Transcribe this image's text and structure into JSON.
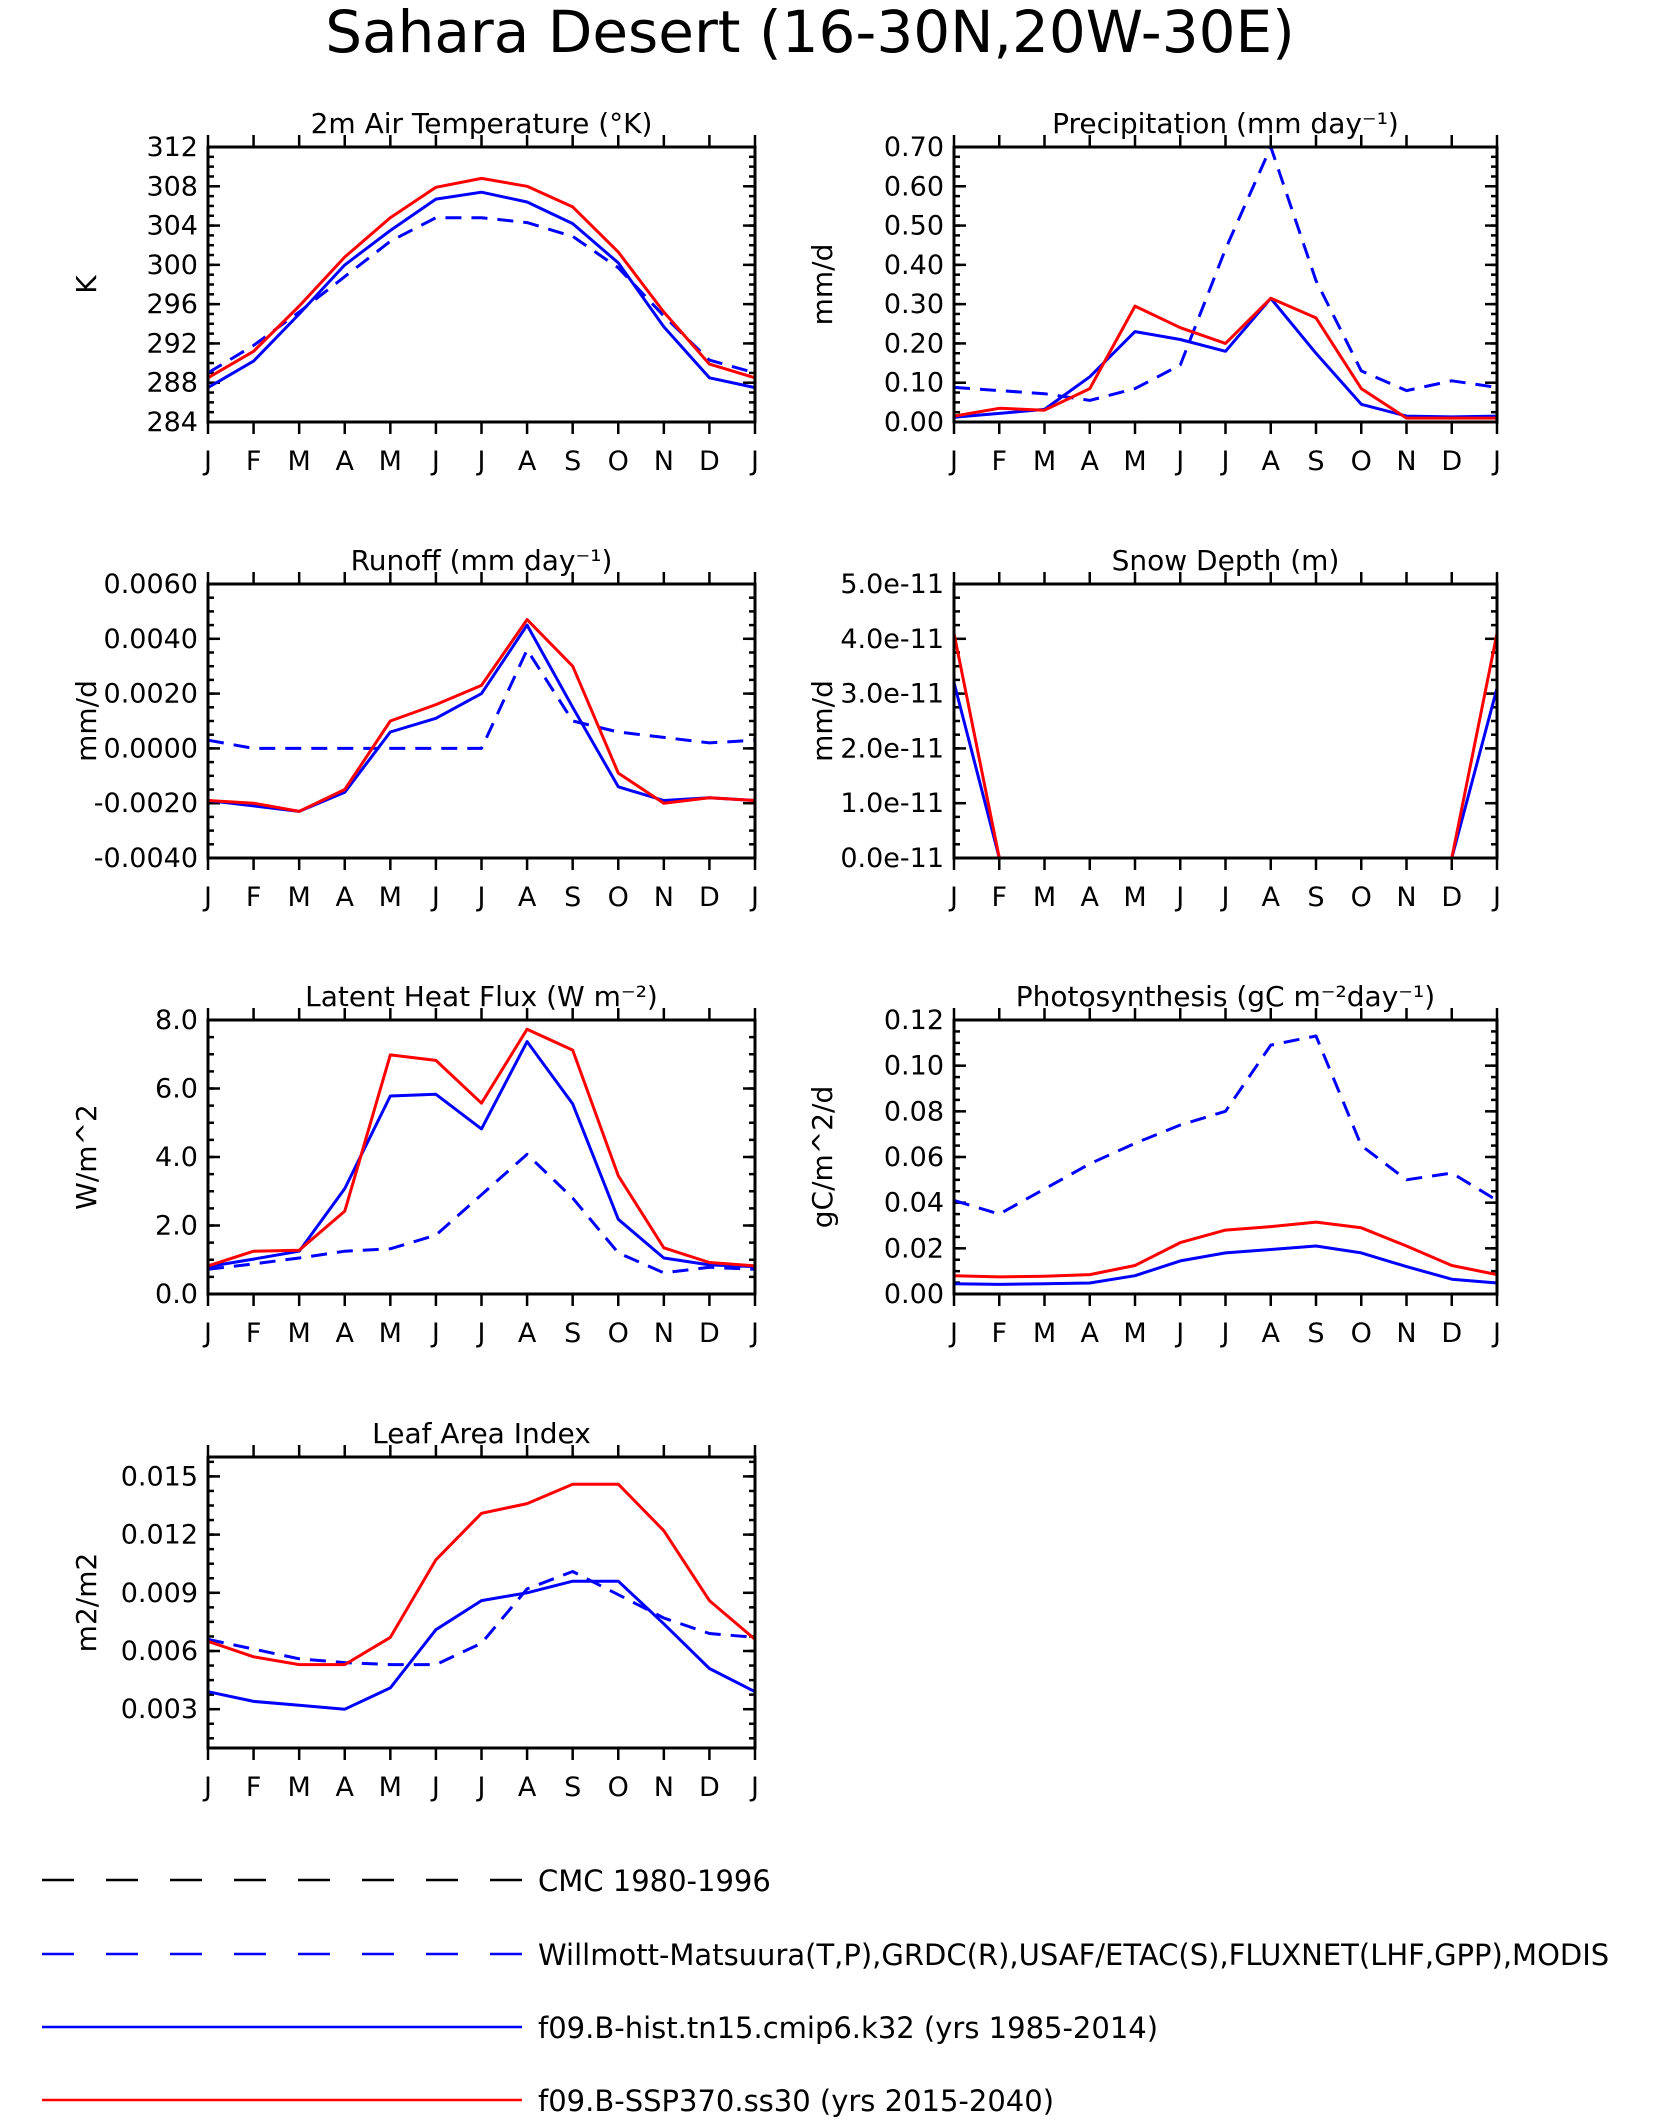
{
  "main_title": "Sahara Desert (16-30N,20W-30E)",
  "months": [
    "J",
    "F",
    "M",
    "A",
    "M",
    "J",
    "J",
    "A",
    "S",
    "O",
    "N",
    "D",
    "J"
  ],
  "colors": {
    "obs": "#0000ff",
    "hist": "#0000ff",
    "ssp": "#ff0000",
    "cmc": "#000000"
  },
  "chart_data": [
    {
      "type": "line",
      "title": "2m Air Temperature (°K)",
      "ylabel": "K",
      "ylim": [
        284,
        312
      ],
      "yticks": [
        "284",
        "288",
        "292",
        "296",
        "300",
        "304",
        "308",
        "312"
      ],
      "categories": [
        "J",
        "F",
        "M",
        "A",
        "M",
        "J",
        "J",
        "A",
        "S",
        "O",
        "N",
        "D",
        "J"
      ],
      "series": [
        {
          "name": "Willmott-Matsuura(T,P),GRDC(R),USAF/ETAC(S),FLUXNET(LHF,GPP),MODIS",
          "values": [
            289.0,
            291.8,
            295.2,
            298.8,
            302.4,
            304.8,
            304.8,
            304.3,
            302.9,
            299.7,
            294.8,
            290.3,
            289.0
          ]
        },
        {
          "name": "f09.B-hist.tn15.cmip6.k32 (yrs 1985-2014)",
          "values": [
            287.5,
            290.2,
            295.0,
            300.0,
            303.5,
            306.7,
            307.4,
            306.4,
            304.2,
            300.2,
            293.7,
            288.5,
            287.5
          ]
        },
        {
          "name": "f09.B-SSP370.ss30 (yrs 2015-2040)",
          "values": [
            288.5,
            291.2,
            295.8,
            300.8,
            304.8,
            307.9,
            308.8,
            308.0,
            305.9,
            301.3,
            295.2,
            289.9,
            288.5
          ]
        }
      ]
    },
    {
      "type": "line",
      "title": "Precipitation (mm day⁻¹)",
      "ylabel": "mm/d",
      "ylim": [
        0,
        0.7
      ],
      "yticks": [
        "0.00",
        "0.10",
        "0.20",
        "0.30",
        "0.40",
        "0.50",
        "0.60",
        "0.70"
      ],
      "categories": [
        "J",
        "F",
        "M",
        "A",
        "M",
        "J",
        "J",
        "A",
        "S",
        "O",
        "N",
        "D",
        "J"
      ],
      "series": [
        {
          "name": "Willmott-Matsuura(T,P),GRDC(R),USAF/ETAC(S),FLUXNET(LHF,GPP),MODIS",
          "values": [
            0.088,
            0.08,
            0.072,
            0.055,
            0.085,
            0.145,
            0.44,
            0.7,
            0.36,
            0.13,
            0.08,
            0.105,
            0.088
          ]
        },
        {
          "name": "f09.B-hist.tn15.cmip6.k32 (yrs 1985-2014)",
          "values": [
            0.012,
            0.022,
            0.032,
            0.115,
            0.23,
            0.21,
            0.18,
            0.315,
            0.175,
            0.045,
            0.015,
            0.013,
            0.015
          ]
        },
        {
          "name": "f09.B-SSP370.ss30 (yrs 2015-2040)",
          "values": [
            0.015,
            0.035,
            0.03,
            0.085,
            0.295,
            0.24,
            0.2,
            0.315,
            0.265,
            0.085,
            0.01,
            0.01,
            0.01
          ]
        }
      ]
    },
    {
      "type": "line",
      "title": "Runoff (mm day⁻¹)",
      "ylabel": "mm/d",
      "ylim": [
        -0.004,
        0.006
      ],
      "yticks": [
        "-0.0040",
        "-0.0020",
        "0.0000",
        "0.0020",
        "0.0040",
        "0.0060"
      ],
      "categories": [
        "J",
        "F",
        "M",
        "A",
        "M",
        "J",
        "J",
        "A",
        "S",
        "O",
        "N",
        "D",
        "J"
      ],
      "series": [
        {
          "name": "Willmott-Matsuura(T,P),GRDC(R),USAF/ETAC(S),FLUXNET(LHF,GPP),MODIS",
          "values": [
            0.0003,
            0.0,
            0.0,
            0.0,
            0.0,
            0.0,
            0.0,
            0.0036,
            0.001,
            0.0006,
            0.0004,
            0.0002,
            0.0003
          ]
        },
        {
          "name": "f09.B-hist.tn15.cmip6.k32 (yrs 1985-2014)",
          "values": [
            -0.0019,
            -0.0021,
            -0.0023,
            -0.0016,
            0.0006,
            0.0011,
            0.002,
            0.0045,
            0.0015,
            -0.0014,
            -0.0019,
            -0.0018,
            -0.0019
          ]
        },
        {
          "name": "f09.B-SSP370.ss30 (yrs 2015-2040)",
          "values": [
            -0.0019,
            -0.002,
            -0.0023,
            -0.0015,
            0.001,
            0.0016,
            0.0023,
            0.0047,
            0.003,
            -0.0009,
            -0.002,
            -0.0018,
            -0.0019
          ]
        }
      ]
    },
    {
      "type": "line",
      "title": "Snow Depth (m)",
      "ylabel": "mm/d",
      "ylim": [
        0,
        5e-11
      ],
      "yticks": [
        "0.0e-11",
        "1.0e-11",
        "2.0e-11",
        "3.0e-11",
        "4.0e-11",
        "5.0e-11"
      ],
      "categories": [
        "J",
        "F",
        "M",
        "A",
        "M",
        "J",
        "J",
        "A",
        "S",
        "O",
        "N",
        "D",
        "J"
      ],
      "series": [
        {
          "name": "Willmott-Matsuura(T,P),GRDC(R),USAF/ETAC(S),FLUXNET(LHF,GPP),MODIS",
          "values": [
            0,
            0,
            0,
            0,
            0,
            0,
            0,
            0,
            0,
            0,
            0,
            0,
            0
          ]
        },
        {
          "name": "f09.B-hist.tn15.cmip6.k32 (yrs 1985-2014)",
          "values": [
            3.2e-11,
            0,
            0,
            0,
            0,
            0,
            0,
            0,
            0,
            0,
            0,
            0,
            3.1e-11
          ]
        },
        {
          "name": "f09.B-SSP370.ss30 (yrs 2015-2040)",
          "values": [
            4.1e-11,
            0,
            0,
            0,
            0,
            0,
            0,
            0,
            0,
            0,
            0,
            0,
            4.1e-11
          ]
        }
      ]
    },
    {
      "type": "line",
      "title": "Latent Heat Flux (W m⁻²)",
      "ylabel": "W/m^2",
      "ylim": [
        0,
        8
      ],
      "yticks": [
        "0.0",
        "2.0",
        "4.0",
        "6.0",
        "8.0"
      ],
      "categories": [
        "J",
        "F",
        "M",
        "A",
        "M",
        "J",
        "J",
        "A",
        "S",
        "O",
        "N",
        "D",
        "J"
      ],
      "series": [
        {
          "name": "Willmott-Matsuura(T,P),GRDC(R),USAF/ETAC(S),FLUXNET(LHF,GPP),MODIS",
          "values": [
            0.72,
            0.88,
            1.05,
            1.25,
            1.32,
            1.72,
            2.9,
            4.08,
            2.8,
            1.2,
            0.62,
            0.78,
            0.72
          ]
        },
        {
          "name": "f09.B-hist.tn15.cmip6.k32 (yrs 1985-2014)",
          "values": [
            0.8,
            1.02,
            1.25,
            3.08,
            5.78,
            5.83,
            4.82,
            7.37,
            5.55,
            2.18,
            1.05,
            0.85,
            0.8
          ]
        },
        {
          "name": "f09.B-SSP370.ss30 (yrs 2015-2040)",
          "values": [
            0.82,
            1.25,
            1.28,
            2.42,
            6.98,
            6.82,
            5.57,
            7.73,
            7.12,
            3.45,
            1.35,
            0.92,
            0.82
          ]
        }
      ]
    },
    {
      "type": "line",
      "title": "Photosynthesis (gC m⁻²day⁻¹)",
      "ylabel": "gC/m^2/d",
      "ylim": [
        0,
        0.12
      ],
      "yticks": [
        "0.00",
        "0.02",
        "0.04",
        "0.06",
        "0.08",
        "0.10",
        "0.12"
      ],
      "categories": [
        "J",
        "F",
        "M",
        "A",
        "M",
        "J",
        "J",
        "A",
        "S",
        "O",
        "N",
        "D",
        "J"
      ],
      "series": [
        {
          "name": "Willmott-Matsuura(T,P),GRDC(R),USAF/ETAC(S),FLUXNET(LHF,GPP),MODIS",
          "values": [
            0.041,
            0.035,
            0.046,
            0.057,
            0.066,
            0.074,
            0.08,
            0.109,
            0.113,
            0.065,
            0.05,
            0.053,
            0.041
          ]
        },
        {
          "name": "f09.B-hist.tn15.cmip6.k32 (yrs 1985-2014)",
          "values": [
            0.0045,
            0.0042,
            0.0045,
            0.0048,
            0.008,
            0.0145,
            0.018,
            0.0195,
            0.021,
            0.018,
            0.012,
            0.0065,
            0.0048
          ]
        },
        {
          "name": "f09.B-SSP370.ss30 (yrs 2015-2040)",
          "values": [
            0.008,
            0.0075,
            0.0078,
            0.0085,
            0.0125,
            0.0225,
            0.028,
            0.0295,
            0.0315,
            0.029,
            0.021,
            0.0125,
            0.0085
          ]
        }
      ]
    },
    {
      "type": "line",
      "title": "Leaf Area Index",
      "ylabel": "m2/m2",
      "ylim": [
        0.001,
        0.016
      ],
      "yticks": [
        "0.003",
        "0.006",
        "0.009",
        "0.012",
        "0.015"
      ],
      "ytick_values": [
        0.003,
        0.006,
        0.009,
        0.012,
        0.015
      ],
      "categories": [
        "J",
        "F",
        "M",
        "A",
        "M",
        "J",
        "J",
        "A",
        "S",
        "O",
        "N",
        "D",
        "J"
      ],
      "series": [
        {
          "name": "Willmott-Matsuura(T,P),GRDC(R),USAF/ETAC(S),FLUXNET(LHF,GPP),MODIS",
          "values": [
            0.0066,
            0.0061,
            0.0056,
            0.0054,
            0.0053,
            0.0053,
            0.0064,
            0.0092,
            0.0101,
            0.0089,
            0.0077,
            0.0069,
            0.0067
          ]
        },
        {
          "name": "f09.B-hist.tn15.cmip6.k32 (yrs 1985-2014)",
          "values": [
            0.0039,
            0.0034,
            0.0032,
            0.003,
            0.0041,
            0.0071,
            0.0086,
            0.009,
            0.0096,
            0.0096,
            0.0074,
            0.0051,
            0.0039
          ]
        },
        {
          "name": "f09.B-SSP370.ss30 (yrs 2015-2040)",
          "values": [
            0.0065,
            0.0057,
            0.0053,
            0.0053,
            0.0067,
            0.0107,
            0.0131,
            0.0136,
            0.0146,
            0.0146,
            0.0122,
            0.0086,
            0.0066
          ]
        }
      ]
    }
  ],
  "legend": [
    {
      "label": "CMC 1980-1996",
      "style": "dashed",
      "color": "#000000"
    },
    {
      "label": "Willmott-Matsuura(T,P),GRDC(R),USAF/ETAC(S),FLUXNET(LHF,GPP),MODIS",
      "style": "dashed",
      "color": "#0000ff"
    },
    {
      "label": "f09.B-hist.tn15.cmip6.k32 (yrs 1985-2014)",
      "style": "solid",
      "color": "#0000ff"
    },
    {
      "label": "f09.B-SSP370.ss30 (yrs 2015-2040)",
      "style": "solid",
      "color": "#ff0000"
    }
  ]
}
